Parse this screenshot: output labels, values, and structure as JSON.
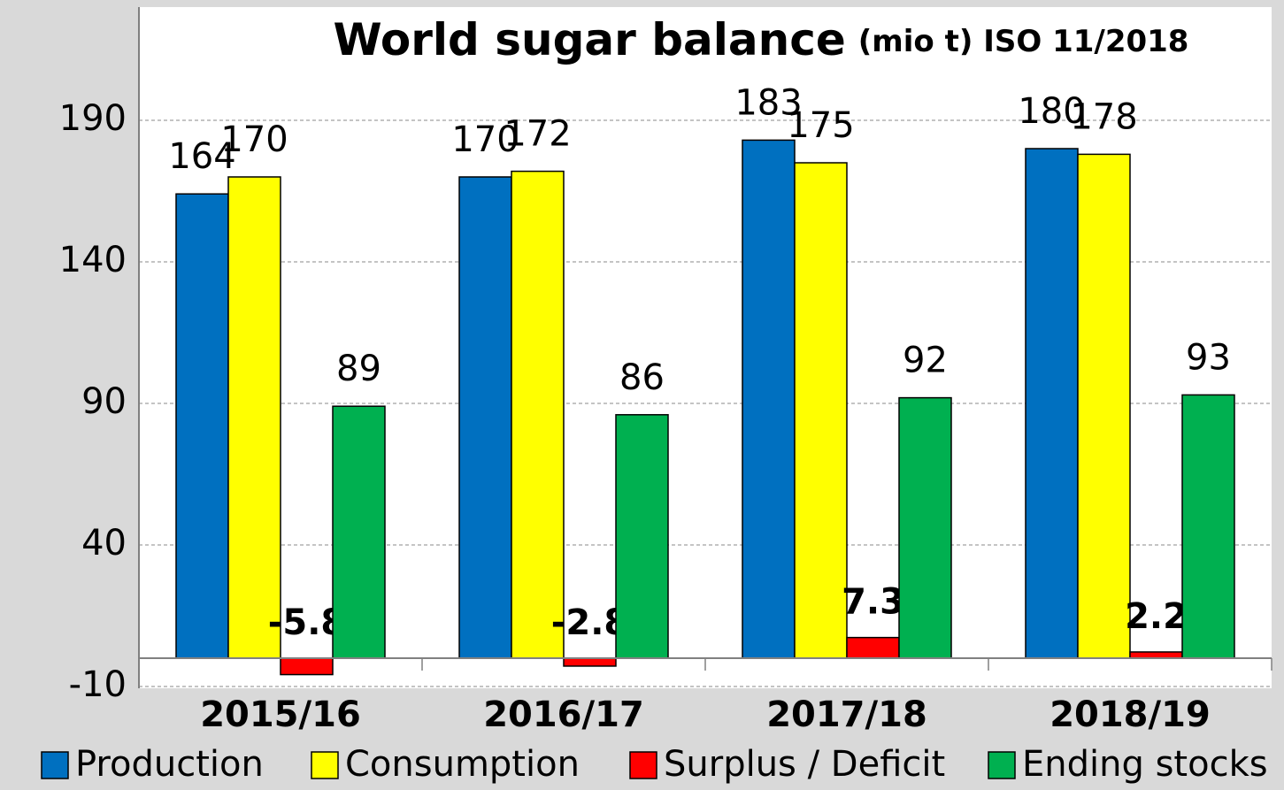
{
  "chart_data": {
    "type": "bar",
    "title": "World sugar balance",
    "subtitle": "(mio t) ISO 11/2018",
    "categories": [
      "2015/16",
      "2016/17",
      "2017/18",
      "2018/19"
    ],
    "series": [
      {
        "name": "Production",
        "color": "#0070c0",
        "values": [
          164,
          170,
          183,
          180
        ]
      },
      {
        "name": "Consumption",
        "color": "#ffff00",
        "values": [
          170,
          172,
          175,
          178
        ]
      },
      {
        "name": "Surplus / Deficit",
        "color": "#ff0000",
        "values": [
          -5.8,
          -2.8,
          7.3,
          2.2
        ]
      },
      {
        "name": "Ending stocks",
        "color": "#00b050",
        "values": [
          89,
          86,
          92,
          93
        ]
      }
    ],
    "ylim": [
      -10,
      230
    ],
    "yticks": [
      -10,
      40,
      90,
      140,
      190
    ],
    "grid": true,
    "legend": "bottom"
  }
}
